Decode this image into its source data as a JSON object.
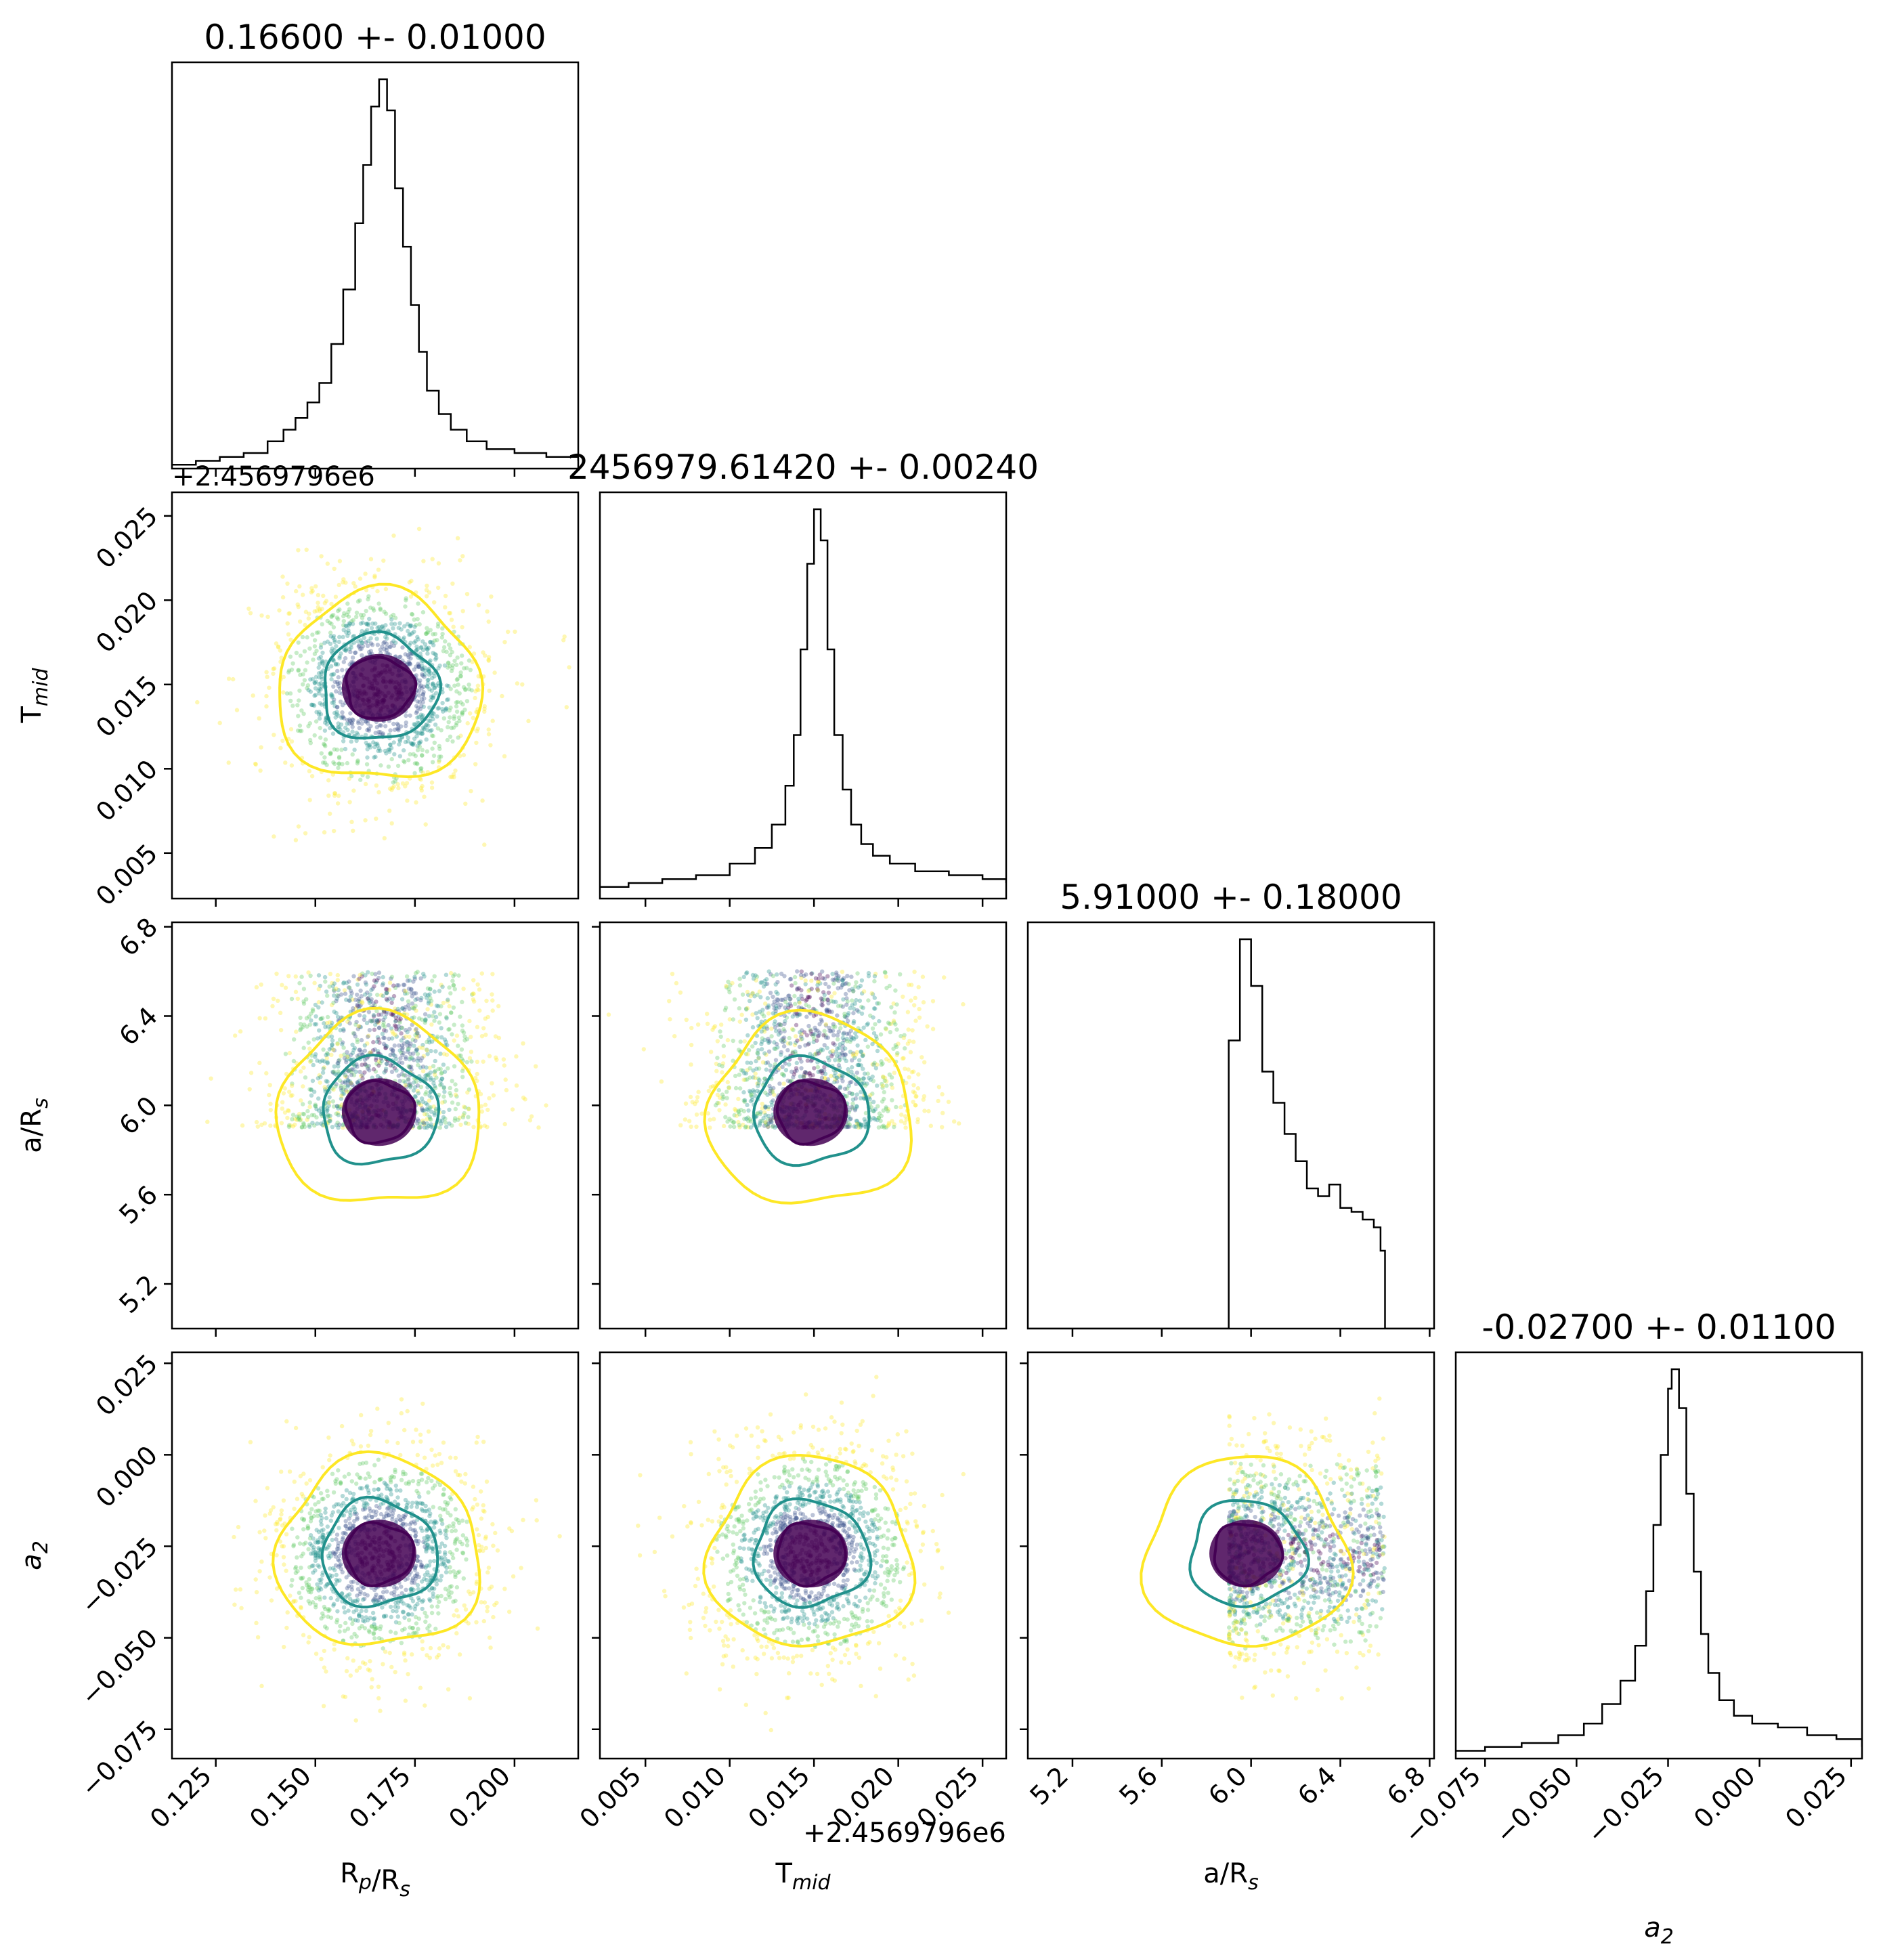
{
  "chart_data": {
    "type": "corner",
    "parameters": [
      {
        "key": "rp",
        "label": "R_p/R_s",
        "title": "0.16600 +- 0.01000",
        "mean": 0.166,
        "std": 0.01,
        "range": [
          0.114,
          0.216
        ],
        "ticks": [
          0.125,
          0.15,
          0.175,
          0.2
        ],
        "tick_labels": [
          "0.125",
          "0.150",
          "0.175",
          "0.200"
        ]
      },
      {
        "key": "tmid",
        "label": "T_mid",
        "title": "2456979.61420 +- 0.00240",
        "offset_label": "+2.4569796e6",
        "mean": 0.0148,
        "std": 0.0024,
        "range": [
          0.0023,
          0.0264
        ],
        "ticks": [
          0.005,
          0.01,
          0.015,
          0.02,
          0.025
        ],
        "tick_labels": [
          "0.005",
          "0.010",
          "0.015",
          "0.020",
          "0.025"
        ]
      },
      {
        "key": "ars",
        "label": "a/R_s",
        "title": "5.91000 +- 0.18000",
        "mean": 5.91,
        "std": 0.18,
        "range": [
          5.0,
          6.82
        ],
        "ticks": [
          5.2,
          5.6,
          6.0,
          6.4,
          6.8
        ],
        "tick_labels": [
          "5.2",
          "5.6",
          "6.0",
          "6.4",
          "6.8"
        ]
      },
      {
        "key": "a2",
        "label": "a_2",
        "title": "-0.02700 +- 0.01100",
        "mean": -0.027,
        "std": 0.011,
        "range": [
          -0.083,
          0.028
        ],
        "ticks": [
          -0.075,
          -0.05,
          -0.025,
          0.0,
          0.025
        ],
        "tick_labels": [
          "−0.075",
          "−0.050",
          "−0.025",
          "0.000",
          "0.025"
        ]
      }
    ],
    "histograms": {
      "rp": [
        [
          0.114,
          0.01
        ],
        [
          0.12,
          0.02
        ],
        [
          0.126,
          0.03
        ],
        [
          0.132,
          0.04
        ],
        [
          0.138,
          0.07
        ],
        [
          0.142,
          0.1
        ],
        [
          0.145,
          0.13
        ],
        [
          0.148,
          0.17
        ],
        [
          0.151,
          0.22
        ],
        [
          0.154,
          0.32
        ],
        [
          0.157,
          0.46
        ],
        [
          0.16,
          0.63
        ],
        [
          0.162,
          0.78
        ],
        [
          0.164,
          0.93
        ],
        [
          0.166,
          1.0
        ],
        [
          0.168,
          0.92
        ],
        [
          0.17,
          0.72
        ],
        [
          0.172,
          0.57
        ],
        [
          0.174,
          0.42
        ],
        [
          0.176,
          0.3
        ],
        [
          0.178,
          0.2
        ],
        [
          0.181,
          0.14
        ],
        [
          0.184,
          0.1
        ],
        [
          0.188,
          0.07
        ],
        [
          0.193,
          0.05
        ],
        [
          0.2,
          0.04
        ],
        [
          0.208,
          0.03
        ],
        [
          0.216,
          0.02
        ]
      ],
      "tmid": [
        [
          0.0023,
          0.03
        ],
        [
          0.004,
          0.04
        ],
        [
          0.006,
          0.05
        ],
        [
          0.008,
          0.06
        ],
        [
          0.01,
          0.09
        ],
        [
          0.0115,
          0.13
        ],
        [
          0.0125,
          0.19
        ],
        [
          0.0133,
          0.29
        ],
        [
          0.0138,
          0.42
        ],
        [
          0.0142,
          0.64
        ],
        [
          0.0146,
          0.86
        ],
        [
          0.015,
          1.0
        ],
        [
          0.0154,
          0.92
        ],
        [
          0.0158,
          0.64
        ],
        [
          0.0162,
          0.42
        ],
        [
          0.0167,
          0.28
        ],
        [
          0.0172,
          0.19
        ],
        [
          0.0178,
          0.14
        ],
        [
          0.0185,
          0.11
        ],
        [
          0.0195,
          0.09
        ],
        [
          0.021,
          0.07
        ],
        [
          0.023,
          0.06
        ],
        [
          0.025,
          0.05
        ],
        [
          0.0264,
          0.04
        ]
      ],
      "ars": [
        [
          5.0,
          0.0
        ],
        [
          5.89,
          0.0
        ],
        [
          5.9,
          0.74
        ],
        [
          5.95,
          1.0
        ],
        [
          6.0,
          0.88
        ],
        [
          6.05,
          0.66
        ],
        [
          6.1,
          0.58
        ],
        [
          6.15,
          0.5
        ],
        [
          6.2,
          0.43
        ],
        [
          6.25,
          0.36
        ],
        [
          6.3,
          0.34
        ],
        [
          6.35,
          0.37
        ],
        [
          6.4,
          0.31
        ],
        [
          6.45,
          0.3
        ],
        [
          6.5,
          0.28
        ],
        [
          6.55,
          0.26
        ],
        [
          6.58,
          0.2
        ],
        [
          6.6,
          0.0
        ],
        [
          6.82,
          0.0
        ]
      ],
      "a2": [
        [
          -0.083,
          0.02
        ],
        [
          -0.075,
          0.03
        ],
        [
          -0.065,
          0.04
        ],
        [
          -0.055,
          0.06
        ],
        [
          -0.048,
          0.09
        ],
        [
          -0.043,
          0.14
        ],
        [
          -0.038,
          0.2
        ],
        [
          -0.034,
          0.29
        ],
        [
          -0.031,
          0.43
        ],
        [
          -0.029,
          0.6
        ],
        [
          -0.027,
          0.78
        ],
        [
          -0.025,
          0.95
        ],
        [
          -0.024,
          1.0
        ],
        [
          -0.022,
          0.9
        ],
        [
          -0.02,
          0.68
        ],
        [
          -0.018,
          0.48
        ],
        [
          -0.016,
          0.32
        ],
        [
          -0.014,
          0.22
        ],
        [
          -0.011,
          0.15
        ],
        [
          -0.007,
          0.11
        ],
        [
          -0.002,
          0.09
        ],
        [
          0.005,
          0.08
        ],
        [
          0.013,
          0.06
        ],
        [
          0.021,
          0.05
        ],
        [
          0.028,
          0.03
        ]
      ]
    },
    "contour_colors": [
      "#fde725",
      "#21918c",
      "#440154"
    ],
    "point_colors": [
      "#fde725",
      "#5ec962",
      "#21918c",
      "#3b528b",
      "#440154"
    ],
    "truncation": {
      "ars": [
        5.9,
        6.6
      ]
    }
  }
}
